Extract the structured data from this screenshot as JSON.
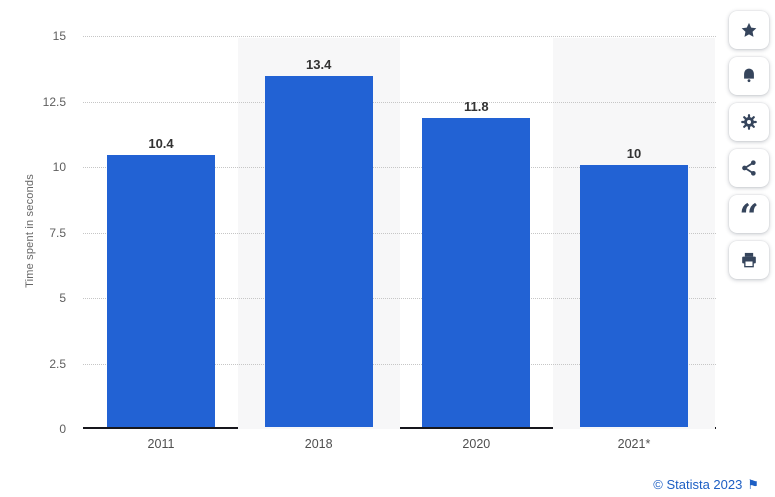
{
  "chart_data": {
    "type": "bar",
    "title": "",
    "xlabel": "",
    "ylabel": "Time spent in seconds",
    "categories": [
      "2011",
      "2018",
      "2020",
      "2021*"
    ],
    "values": [
      10.4,
      13.4,
      11.8,
      10
    ],
    "value_labels": [
      "10.4",
      "13.4",
      "11.8",
      "10"
    ],
    "banded": [
      false,
      true,
      false,
      true
    ],
    "ylim": [
      0,
      15
    ],
    "yticks": [
      {
        "value": 0,
        "label": "0"
      },
      {
        "value": 2.5,
        "label": "2.5"
      },
      {
        "value": 5,
        "label": "5"
      },
      {
        "value": 7.5,
        "label": "7.5"
      },
      {
        "value": 10,
        "label": "10"
      },
      {
        "value": 12.5,
        "label": "12.5"
      },
      {
        "value": 15,
        "label": "15"
      }
    ],
    "grid": "horizontal-dotted",
    "legend": "none"
  },
  "colors": {
    "bar": "#2262d4",
    "band": "#f7f7f8",
    "gridline": "#c6c6c6",
    "axis": "#17171d",
    "tick_label": "#5e5e5e",
    "value_label": "#333333",
    "toolbar_icon": "#36455c",
    "link_blue": "#1d5fc4"
  },
  "toolbar": {
    "buttons": [
      {
        "icon": "star-icon",
        "action": "favorite"
      },
      {
        "icon": "bell-icon",
        "action": "notifications"
      },
      {
        "icon": "gear-icon",
        "action": "settings"
      },
      {
        "icon": "share-icon",
        "action": "share"
      },
      {
        "icon": "quote-icon",
        "action": "cite"
      },
      {
        "icon": "print-icon",
        "action": "print"
      }
    ]
  },
  "icons": {
    "quote_glyph": "“",
    "flag_glyph": "⚑"
  },
  "footer": {
    "copyright": "© Statista 2023"
  }
}
